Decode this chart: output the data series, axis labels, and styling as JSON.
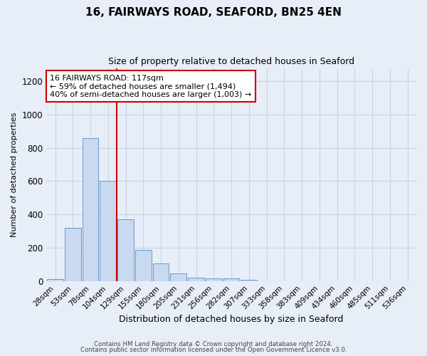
{
  "title": "16, FAIRWAYS ROAD, SEAFORD, BN25 4EN",
  "subtitle": "Size of property relative to detached houses in Seaford",
  "xlabel": "Distribution of detached houses by size in Seaford",
  "ylabel": "Number of detached properties",
  "bar_labels": [
    "28sqm",
    "53sqm",
    "78sqm",
    "104sqm",
    "129sqm",
    "155sqm",
    "180sqm",
    "205sqm",
    "231sqm",
    "256sqm",
    "282sqm",
    "307sqm",
    "333sqm",
    "358sqm",
    "383sqm",
    "409sqm",
    "434sqm",
    "460sqm",
    "485sqm",
    "511sqm",
    "536sqm"
  ],
  "bar_heights": [
    12,
    320,
    860,
    600,
    370,
    185,
    105,
    48,
    20,
    18,
    14,
    8,
    0,
    0,
    0,
    0,
    0,
    0,
    0,
    0,
    0
  ],
  "bar_color": "#c9d9f0",
  "bar_edge_color": "#6699cc",
  "vline_x_index": 3,
  "vline_color": "#cc0000",
  "ylim": [
    0,
    1280
  ],
  "yticks": [
    0,
    200,
    400,
    600,
    800,
    1000,
    1200
  ],
  "annotation_title": "16 FAIRWAYS ROAD: 117sqm",
  "annotation_line1": "← 59% of detached houses are smaller (1,494)",
  "annotation_line2": "40% of semi-detached houses are larger (1,003) →",
  "annotation_box_color": "#ffffff",
  "annotation_box_edge": "#cc0000",
  "grid_color": "#c8d4e8",
  "bg_color": "#e8eef8",
  "footer_line1": "Contains HM Land Registry data © Crown copyright and database right 2024.",
  "footer_line2": "Contains public sector information licensed under the Open Government Licence v3.0."
}
